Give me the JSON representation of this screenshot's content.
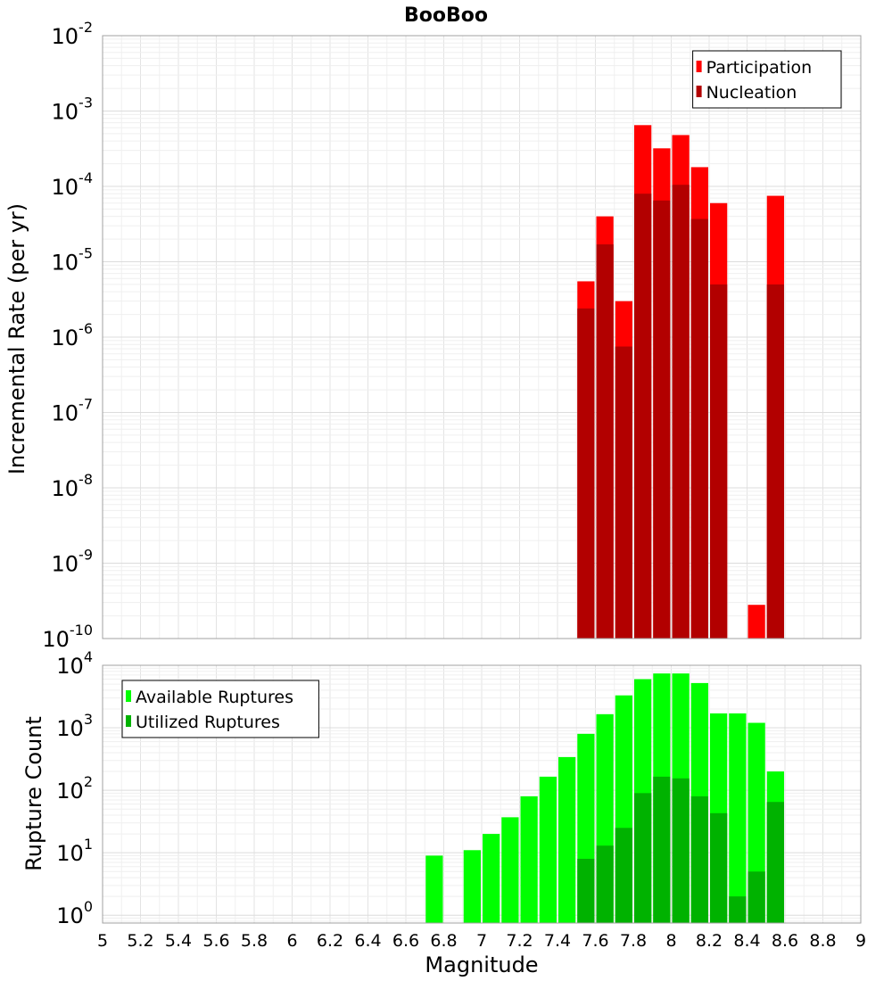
{
  "chart_data": [
    {
      "type": "bar",
      "title": "BooBoo",
      "xlabel": "Magnitude",
      "ylabel": "Incremental Rate (per yr)",
      "xlim": [
        5,
        9
      ],
      "ylim": [
        1e-10,
        0.01
      ],
      "yscale": "log",
      "grid": true,
      "legend_position": "top-right",
      "bin_width": 0.1,
      "series": [
        {
          "name": "Participation",
          "color": "#ff0000",
          "x": [
            7.55,
            7.65,
            7.75,
            7.85,
            7.95,
            8.05,
            8.15,
            8.25,
            8.45,
            8.55
          ],
          "values": [
            5.5e-06,
            4e-05,
            3e-06,
            0.00065,
            0.00032,
            0.00048,
            0.00018,
            6e-05,
            2.8e-10,
            7.5e-05
          ]
        },
        {
          "name": "Nucleation",
          "color": "#b20000",
          "x": [
            7.55,
            7.65,
            7.75,
            7.85,
            7.95,
            8.05,
            8.15,
            8.25,
            8.55
          ],
          "values": [
            2.4e-06,
            1.7e-05,
            7.5e-07,
            8e-05,
            6.5e-05,
            0.000105,
            3.7e-05,
            5e-06,
            5e-06
          ]
        }
      ],
      "y_ticks": [
        {
          "base": "10",
          "exp": "-2",
          "value": 0.01
        },
        {
          "base": "10",
          "exp": "-3",
          "value": 0.001
        },
        {
          "base": "10",
          "exp": "-4",
          "value": 0.0001
        },
        {
          "base": "10",
          "exp": "-5",
          "value": 1e-05
        },
        {
          "base": "10",
          "exp": "-6",
          "value": 1e-06
        },
        {
          "base": "10",
          "exp": "-7",
          "value": 1e-07
        },
        {
          "base": "10",
          "exp": "-8",
          "value": 1e-08
        },
        {
          "base": "10",
          "exp": "-9",
          "value": 1e-09
        },
        {
          "base": "10",
          "exp": "-10",
          "value": 1e-10
        }
      ]
    },
    {
      "type": "bar",
      "title": "",
      "xlabel": "Magnitude",
      "ylabel": "Rupture Count",
      "xlim": [
        5,
        9
      ],
      "ylim": [
        0.75,
        10000
      ],
      "yscale": "log",
      "grid": true,
      "legend_position": "top-left",
      "bin_width": 0.1,
      "series": [
        {
          "name": "Available Ruptures",
          "color": "#00ff00",
          "x": [
            6.75,
            6.95,
            7.05,
            7.15,
            7.25,
            7.35,
            7.45,
            7.55,
            7.65,
            7.75,
            7.85,
            7.95,
            8.05,
            8.15,
            8.25,
            8.35,
            8.45,
            8.55
          ],
          "values": [
            9,
            11,
            20,
            37,
            80,
            165,
            340,
            800,
            1650,
            3300,
            6000,
            7400,
            7400,
            5200,
            1700,
            1700,
            1200,
            200
          ]
        },
        {
          "name": "Utilized Ruptures",
          "color": "#00b200",
          "x": [
            7.55,
            7.65,
            7.75,
            7.85,
            7.95,
            8.05,
            8.15,
            8.25,
            8.35,
            8.45,
            8.55
          ],
          "values": [
            8,
            13,
            25,
            90,
            165,
            155,
            80,
            43,
            2,
            5,
            65
          ]
        }
      ],
      "y_ticks": [
        {
          "base": "10",
          "exp": "4",
          "value": 10000
        },
        {
          "base": "10",
          "exp": "3",
          "value": 1000
        },
        {
          "base": "10",
          "exp": "2",
          "value": 100
        },
        {
          "base": "10",
          "exp": "1",
          "value": 10
        },
        {
          "base": "10",
          "exp": "0",
          "value": 1
        }
      ]
    }
  ],
  "x_ticks": [
    {
      "value": 5,
      "label": "5"
    },
    {
      "value": 5.2,
      "label": "5.2"
    },
    {
      "value": 5.4,
      "label": "5.4"
    },
    {
      "value": 5.6,
      "label": "5.6"
    },
    {
      "value": 5.8,
      "label": "5.8"
    },
    {
      "value": 6,
      "label": "6"
    },
    {
      "value": 6.2,
      "label": "6.2"
    },
    {
      "value": 6.4,
      "label": "6.4"
    },
    {
      "value": 6.6,
      "label": "6.6"
    },
    {
      "value": 6.8,
      "label": "6.8"
    },
    {
      "value": 7,
      "label": "7"
    },
    {
      "value": 7.2,
      "label": "7.2"
    },
    {
      "value": 7.4,
      "label": "7.4"
    },
    {
      "value": 7.6,
      "label": "7.6"
    },
    {
      "value": 7.8,
      "label": "7.8"
    },
    {
      "value": 8,
      "label": "8"
    },
    {
      "value": 8.2,
      "label": "8.2"
    },
    {
      "value": 8.4,
      "label": "8.4"
    },
    {
      "value": 8.6,
      "label": "8.6"
    },
    {
      "value": 8.8,
      "label": "8.8"
    },
    {
      "value": 9,
      "label": "9"
    }
  ]
}
